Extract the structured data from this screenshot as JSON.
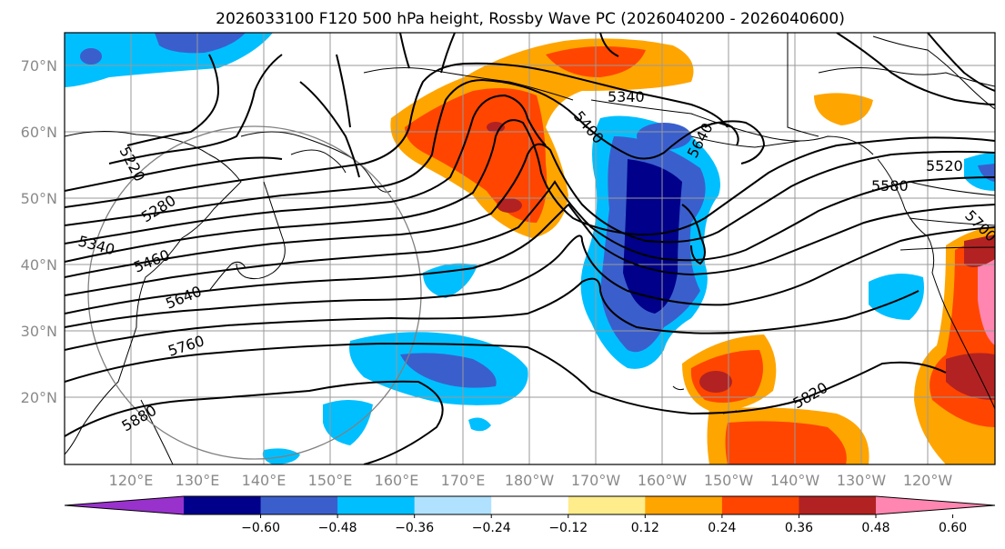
{
  "title": "2026033100 F120 500 hPa height, Rossby Wave PC (2026040200 - 2026040600)",
  "chart_data": {
    "type": "map",
    "map_extent": {
      "lon_min": 110,
      "lon_max": 250,
      "lat_min": 10,
      "lat_max": 75
    },
    "lat_ticks": [
      "20°N",
      "30°N",
      "40°N",
      "50°N",
      "60°N",
      "70°N"
    ],
    "lon_ticks": [
      "120°E",
      "130°E",
      "140°E",
      "150°E",
      "160°E",
      "170°E",
      "180°W",
      "170°W",
      "160°W",
      "150°W",
      "140°W",
      "130°W",
      "120°W"
    ],
    "contour_labels": [
      "5220",
      "5280",
      "5340",
      "5460",
      "5640",
      "5760",
      "5880",
      "5820",
      "5520",
      "5580",
      "5340",
      "5400",
      "5640",
      "5700"
    ],
    "colorbar": {
      "ticks": [
        "−0.60",
        "−0.48",
        "−0.36",
        "−0.24",
        "−0.12",
        "0.12",
        "0.24",
        "0.36",
        "0.48",
        "0.60"
      ],
      "colors": [
        "#9932cc",
        "#00008b",
        "#3a5fcd",
        "#00bfff",
        "#b0e2ff",
        "#ffffff",
        "#ffec8b",
        "#ffa500",
        "#ff4500",
        "#b22222",
        "#ff86b0"
      ]
    }
  }
}
